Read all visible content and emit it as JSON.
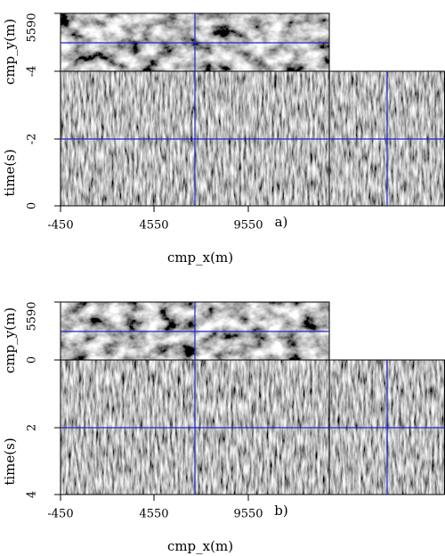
{
  "panels": [
    {
      "label": "a)",
      "x_axis": {
        "title": "cmp_x(m)",
        "ticks": [
          "-450",
          "4550",
          "9550"
        ]
      },
      "y_axis_top": {
        "title": "cmp_y(m)",
        "ticks": [
          "5590"
        ]
      },
      "y_axis_time": {
        "title": "time(s)",
        "ticks": [
          "-4",
          "-2",
          "0"
        ]
      }
    },
    {
      "label": "b)",
      "x_axis": {
        "title": "cmp_x(m)",
        "ticks": [
          "-450",
          "4550",
          "9550"
        ]
      },
      "y_axis_top": {
        "title": "cmp_y(m)",
        "ticks": [
          "5590"
        ]
      },
      "y_axis_time": {
        "title": "time(s)",
        "ticks": [
          "0",
          "2",
          "4"
        ]
      }
    }
  ]
}
